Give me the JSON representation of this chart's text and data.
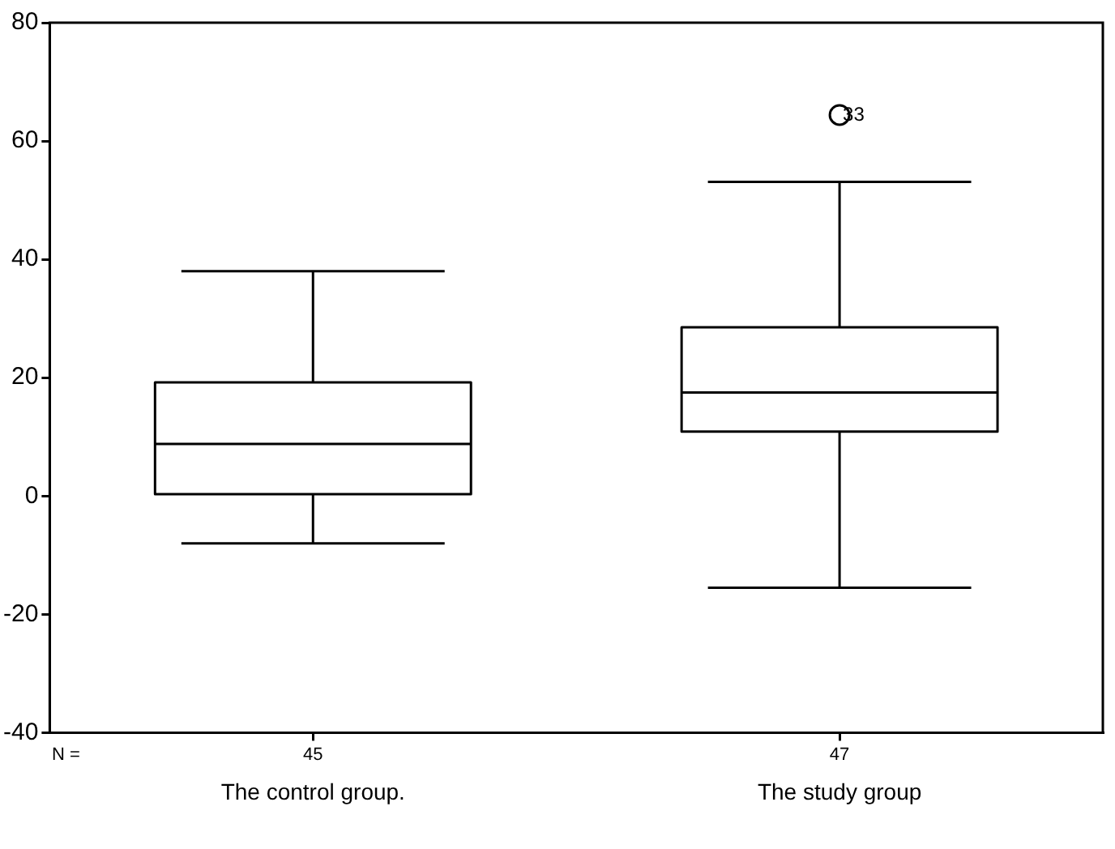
{
  "chart_data": {
    "type": "box",
    "categories": [
      "The control group.",
      "The study group"
    ],
    "boxes": [
      {
        "low": -8.0,
        "q1": 0.3,
        "median": 8.8,
        "q3": 19.2,
        "high": 38.0
      },
      {
        "low": -15.5,
        "q1": 10.9,
        "median": 17.5,
        "q3": 28.5,
        "high": 53.1,
        "outliers": [
          64.4
        ]
      }
    ],
    "color": "#000000",
    "ylim": [
      -40,
      80
    ],
    "yticks": [
      -40,
      -20,
      0,
      20,
      40,
      60,
      80
    ],
    "grid": false,
    "legend": false,
    "annotations": [
      "N =",
      "45",
      "47",
      "33"
    ]
  }
}
